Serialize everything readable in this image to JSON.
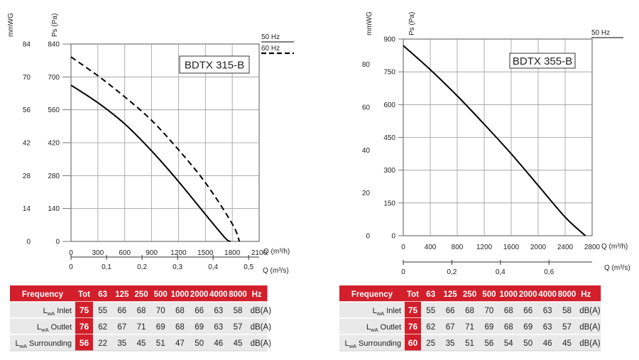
{
  "colors": {
    "header_red": "#d21f2b",
    "row_gray": "#e9e9e9",
    "grid": "#9a9a9a",
    "curve": "#000000",
    "text": "#222222"
  },
  "table_headers": {
    "frequency": "Frequency",
    "total": "Tot",
    "bands": [
      "63",
      "125",
      "250",
      "500",
      "1000",
      "2000",
      "4000",
      "8000"
    ],
    "unit": "Hz"
  },
  "chart_data": [
    {
      "type": "line",
      "title": "BDTX 315-B",
      "xlabel": "Q (m³/h)",
      "x2label": "Q (m³/s)",
      "ylabel": "Ps (Pa)",
      "y2label": "mmWG",
      "xlim": [
        0,
        2100
      ],
      "ylim": [
        0,
        840
      ],
      "x_ticks": [
        "0",
        "300",
        "600",
        "900",
        "1200",
        "1500",
        "1800",
        "2100"
      ],
      "x2_ticks": [
        "0",
        "0,1",
        "0,2",
        "0,3",
        "0,4",
        "0,5"
      ],
      "x2_values": [
        0,
        0.1,
        0.2,
        0.3,
        0.4,
        0.5
      ],
      "y_ticks": [
        "0",
        "140",
        "280",
        "420",
        "560",
        "700",
        "840"
      ],
      "y2_ticks": [
        "0",
        "14",
        "28",
        "42",
        "56",
        "70",
        "84"
      ],
      "grid": true,
      "legend_position": "top-right",
      "series": [
        {
          "name": "50 Hz",
          "style": "solid",
          "x": [
            0,
            300,
            600,
            900,
            1200,
            1500,
            1720,
            1780
          ],
          "y": [
            665,
            590,
            500,
            385,
            255,
            115,
            15,
            0
          ]
        },
        {
          "name": "60 Hz",
          "style": "dashed",
          "x": [
            0,
            300,
            600,
            900,
            1200,
            1500,
            1800,
            1880
          ],
          "y": [
            785,
            705,
            615,
            515,
            390,
            250,
            75,
            0
          ]
        }
      ],
      "sound_table": {
        "rows": [
          {
            "label": "Inlet",
            "total": "75",
            "values": [
              "55",
              "66",
              "68",
              "70",
              "68",
              "66",
              "63",
              "58"
            ],
            "unit": "dB(A)"
          },
          {
            "label": "Outlet",
            "total": "76",
            "values": [
              "62",
              "67",
              "71",
              "69",
              "68",
              "69",
              "63",
              "57"
            ],
            "unit": "dB(A)"
          },
          {
            "label": "Surrounding",
            "total": "56",
            "values": [
              "22",
              "35",
              "45",
              "51",
              "47",
              "50",
              "46",
              "45"
            ],
            "unit": "dB(A)"
          }
        ]
      }
    },
    {
      "type": "line",
      "title": "BDTX 355-B",
      "xlabel": "Q (m³/h)",
      "x2label": "Q (m³/s)",
      "ylabel": "Ps (Pa)",
      "y2label": "mmWG",
      "xlim": [
        0,
        2800
      ],
      "ylim": [
        0,
        900
      ],
      "x_ticks": [
        "0",
        "400",
        "800",
        "1200",
        "1600",
        "2000",
        "2400",
        "2800"
      ],
      "x2_ticks": [
        "0",
        "0,2",
        "0,4",
        "0,6"
      ],
      "x2_values": [
        0,
        0.2,
        0.4,
        0.6
      ],
      "y_ticks": [
        "0",
        "150",
        "300",
        "450",
        "600",
        "750",
        "900"
      ],
      "y2_ticks": [
        "0",
        "20",
        "40",
        "60",
        "80"
      ],
      "y2_values": [
        0,
        20,
        40,
        60,
        80
      ],
      "grid": true,
      "legend_position": "top-right",
      "series": [
        {
          "name": "50 Hz",
          "style": "solid",
          "x": [
            0,
            400,
            800,
            1200,
            1600,
            2000,
            2400,
            2700
          ],
          "y": [
            870,
            760,
            640,
            510,
            375,
            230,
            85,
            0
          ]
        }
      ],
      "sound_table": {
        "rows": [
          {
            "label": "Inlet",
            "total": "75",
            "values": [
              "55",
              "66",
              "68",
              "70",
              "68",
              "66",
              "63",
              "58"
            ],
            "unit": "dB(A)"
          },
          {
            "label": "Outlet",
            "total": "76",
            "values": [
              "62",
              "67",
              "71",
              "69",
              "68",
              "69",
              "63",
              "57"
            ],
            "unit": "dB(A)"
          },
          {
            "label": "Surrounding",
            "total": "60",
            "values": [
              "25",
              "35",
              "51",
              "56",
              "54",
              "50",
              "46",
              "45"
            ],
            "unit": "dB(A)"
          }
        ]
      }
    }
  ]
}
